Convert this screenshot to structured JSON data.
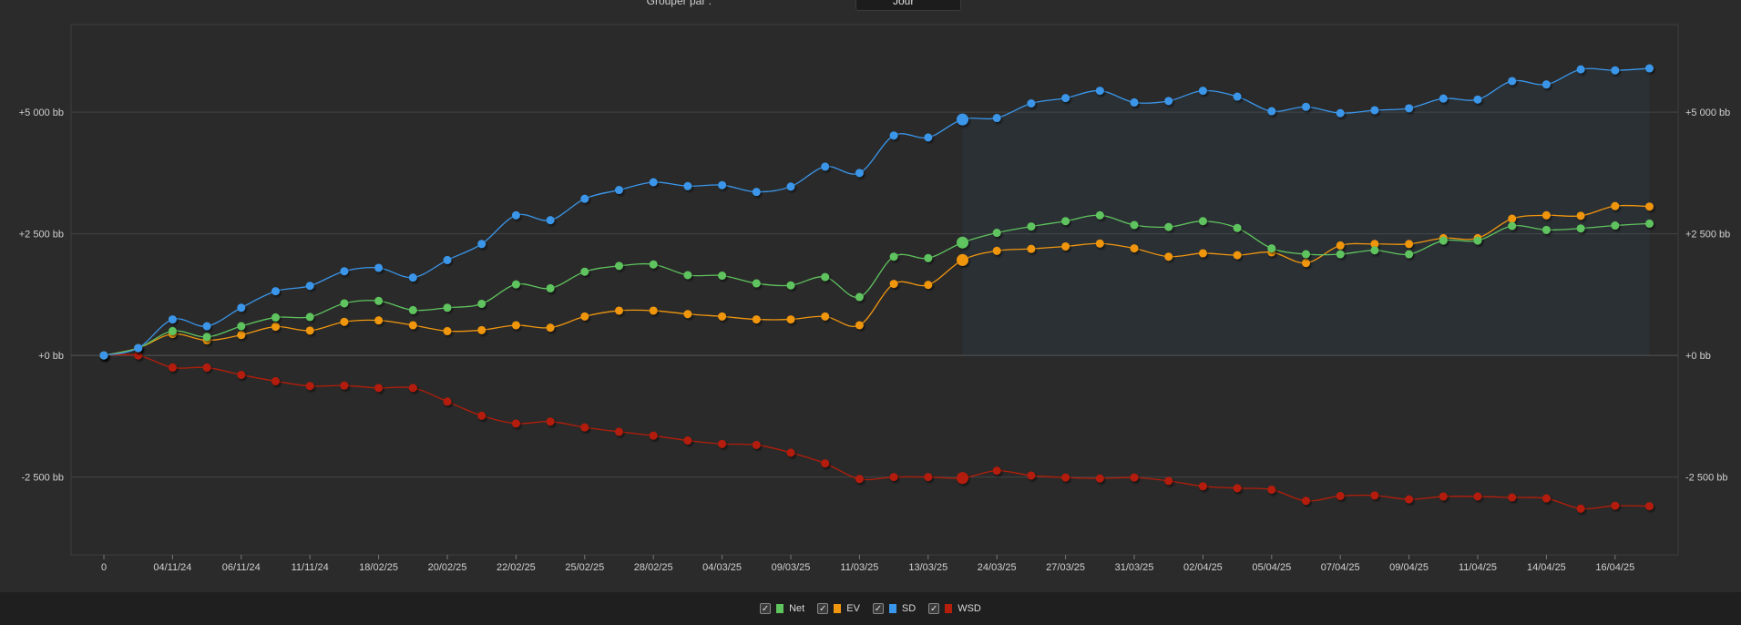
{
  "toolbar": {
    "group_by_label": "Grouper par :",
    "group_by_value": "Jour"
  },
  "legend": [
    {
      "label": "Net",
      "color": "#5ec45e",
      "checked": true
    },
    {
      "label": "EV",
      "color": "#f0960f",
      "checked": true
    },
    {
      "label": "SD",
      "color": "#3a96ea",
      "checked": true
    },
    {
      "label": "WSD",
      "color": "#b41e0a",
      "checked": true
    }
  ],
  "chart_data": {
    "type": "line",
    "title": "",
    "xlabel": "",
    "ylabel": "",
    "ylim": [
      -4100,
      6800
    ],
    "y_ticks": [
      5000,
      2500,
      0,
      -2500
    ],
    "y_tick_labels": [
      "+5 000 bb",
      "+2 500 bb",
      "+0 bb",
      "-2 500 bb"
    ],
    "x_tick_labels": [
      "0",
      "04/11/24",
      "06/11/24",
      "11/11/24",
      "18/02/25",
      "20/02/25",
      "22/02/25",
      "25/02/25",
      "28/02/25",
      "04/03/25",
      "09/03/25",
      "11/03/25",
      "13/03/25",
      "24/03/25",
      "27/03/25",
      "31/03/25",
      "02/04/25",
      "05/04/25",
      "07/04/25",
      "09/04/25",
      "11/04/25",
      "14/04/25",
      "16/04/25"
    ],
    "x_tick_index_positions": [
      0,
      2,
      4,
      6,
      8,
      10,
      12,
      14,
      16,
      18,
      20,
      22,
      24,
      26,
      28,
      30,
      32,
      34,
      36,
      38,
      40,
      42,
      44
    ],
    "highlight_index": 25,
    "grid": true,
    "legend_position": "bottom-center",
    "series": [
      {
        "name": "Net",
        "color": "#5ec45e",
        "values": [
          0,
          150,
          500,
          380,
          600,
          780,
          790,
          1070,
          1120,
          930,
          980,
          1060,
          1460,
          1380,
          1720,
          1840,
          1870,
          1650,
          1640,
          1480,
          1440,
          1610,
          1200,
          2030,
          2000,
          2320,
          2520,
          2650,
          2760,
          2880,
          2680,
          2640,
          2760,
          2620,
          2200,
          2080,
          2080,
          2160,
          2080,
          2360,
          2360,
          2660,
          2580,
          2610,
          2670,
          2710
        ]
      },
      {
        "name": "EV",
        "color": "#f0960f",
        "values": [
          0,
          150,
          440,
          310,
          420,
          590,
          510,
          690,
          720,
          620,
          500,
          520,
          620,
          570,
          800,
          920,
          920,
          850,
          800,
          740,
          740,
          800,
          620,
          1470,
          1450,
          1960,
          2150,
          2190,
          2240,
          2300,
          2200,
          2030,
          2100,
          2060,
          2120,
          1900,
          2260,
          2290,
          2290,
          2410,
          2410,
          2810,
          2880,
          2870,
          3070,
          3060
        ]
      },
      {
        "name": "SD",
        "color": "#3a96ea",
        "values": [
          0,
          150,
          740,
          600,
          980,
          1320,
          1430,
          1730,
          1800,
          1600,
          1960,
          2290,
          2880,
          2780,
          3220,
          3400,
          3560,
          3480,
          3500,
          3360,
          3470,
          3880,
          3750,
          4520,
          4480,
          4850,
          4880,
          5180,
          5290,
          5440,
          5200,
          5230,
          5440,
          5320,
          5020,
          5110,
          4980,
          5040,
          5080,
          5280,
          5260,
          5640,
          5570,
          5880,
          5860,
          5900
        ]
      },
      {
        "name": "WSD",
        "color": "#b41e0a",
        "values": [
          0,
          0,
          -250,
          -250,
          -400,
          -530,
          -630,
          -620,
          -670,
          -670,
          -950,
          -1240,
          -1400,
          -1360,
          -1480,
          -1570,
          -1650,
          -1750,
          -1820,
          -1840,
          -2000,
          -2220,
          -2540,
          -2500,
          -2500,
          -2520,
          -2370,
          -2470,
          -2510,
          -2530,
          -2510,
          -2580,
          -2690,
          -2730,
          -2760,
          -2990,
          -2890,
          -2880,
          -2960,
          -2900,
          -2900,
          -2920,
          -2940,
          -3150,
          -3090,
          -3100
        ]
      }
    ]
  }
}
